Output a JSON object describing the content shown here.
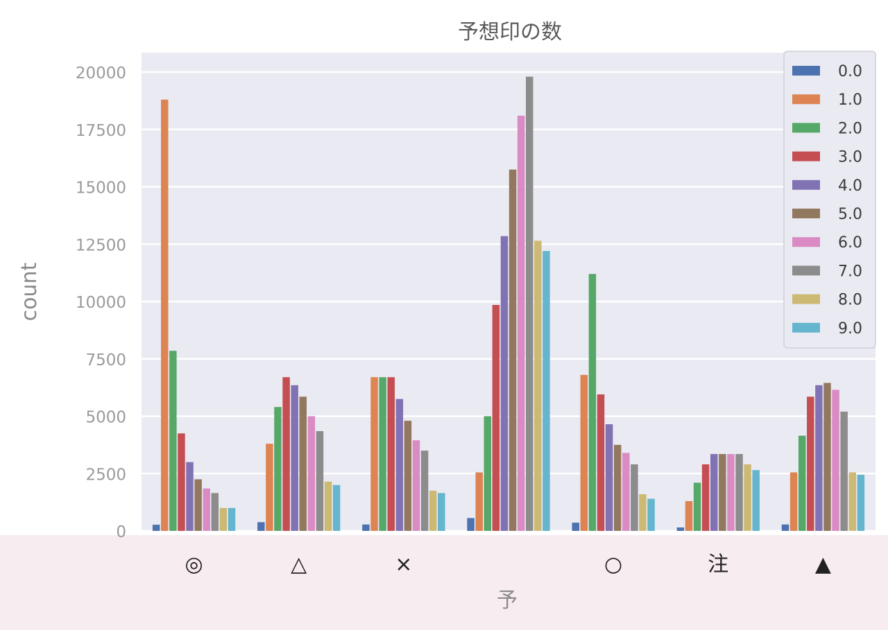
{
  "chart_data": {
    "type": "bar",
    "title": "予想印の数",
    "xlabel": "予",
    "ylabel": "count",
    "categories": [
      "◎",
      "△",
      "×",
      "",
      "○",
      "注",
      "▲"
    ],
    "ylim": [
      0,
      20000
    ],
    "yticks": [
      0,
      2500,
      5000,
      7500,
      10000,
      12500,
      15000,
      17500,
      20000
    ],
    "grid": true,
    "legend_position": "top-right",
    "series": [
      {
        "name": "0.0",
        "color": "#4c72b0",
        "values": [
          270,
          380,
          280,
          560,
          360,
          150,
          280
        ]
      },
      {
        "name": "1.0",
        "color": "#dd8452",
        "values": [
          18800,
          3800,
          6700,
          2550,
          6800,
          1300,
          2550
        ]
      },
      {
        "name": "2.0",
        "color": "#55a868",
        "values": [
          7850,
          5400,
          6700,
          5000,
          11200,
          2100,
          4150
        ]
      },
      {
        "name": "3.0",
        "color": "#c44e52",
        "values": [
          4250,
          6700,
          6700,
          9850,
          5950,
          2900,
          5850
        ]
      },
      {
        "name": "4.0",
        "color": "#8172b3",
        "values": [
          3000,
          6350,
          5750,
          12850,
          4650,
          3350,
          6350
        ]
      },
      {
        "name": "5.0",
        "color": "#937860",
        "values": [
          2250,
          5850,
          4800,
          15750,
          3750,
          3350,
          6450
        ]
      },
      {
        "name": "6.0",
        "color": "#da8bc3",
        "values": [
          1850,
          5000,
          3950,
          18100,
          3400,
          3350,
          6150
        ]
      },
      {
        "name": "7.0",
        "color": "#8c8c8c",
        "values": [
          1650,
          4350,
          3500,
          19800,
          2900,
          3350,
          5200
        ]
      },
      {
        "name": "8.0",
        "color": "#ccb974",
        "values": [
          1000,
          2150,
          1750,
          12650,
          1600,
          2900,
          2550
        ]
      },
      {
        "name": "9.0",
        "color": "#64b5cd",
        "values": [
          1000,
          2000,
          1650,
          12200,
          1400,
          2650,
          2450
        ]
      }
    ]
  }
}
